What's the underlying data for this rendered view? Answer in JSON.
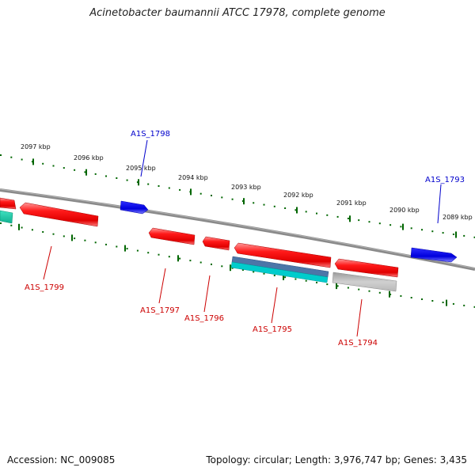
{
  "title": "Acinetobacter baumannii ATCC 17978, complete genome",
  "footer": {
    "accession": "Accession: NC_009085",
    "summary": "Topology: circular; Length: 3,976,747 bp; Genes: 3,435"
  },
  "scale_labels": [
    "2097 kbp",
    "2096 kbp",
    "2095 kbp",
    "2094 kbp",
    "2093 kbp",
    "2092 kbp",
    "2091 kbp",
    "2090 kbp",
    "2089 kbp"
  ],
  "gene_labels": [
    {
      "text": "A1S_1798",
      "color": "#0000cc"
    },
    {
      "text": "A1S_1793",
      "color": "#0000cc"
    },
    {
      "text": "A1S_1799",
      "color": "#cc0000"
    },
    {
      "text": "A1S_1797",
      "color": "#cc0000"
    },
    {
      "text": "A1S_1796",
      "color": "#cc0000"
    },
    {
      "text": "A1S_1795",
      "color": "#cc0000"
    },
    {
      "text": "A1S_1794",
      "color": "#cc0000"
    }
  ],
  "colors": {
    "forward_strand": "#0000ee",
    "reverse_strand": "#ee0000",
    "rna_cyan": "#00c8c8",
    "rna_steel": "#4a6fa0",
    "pseudo_grey": "#c0c0c0",
    "tick_green": "#006600",
    "backbone": "#888888"
  }
}
